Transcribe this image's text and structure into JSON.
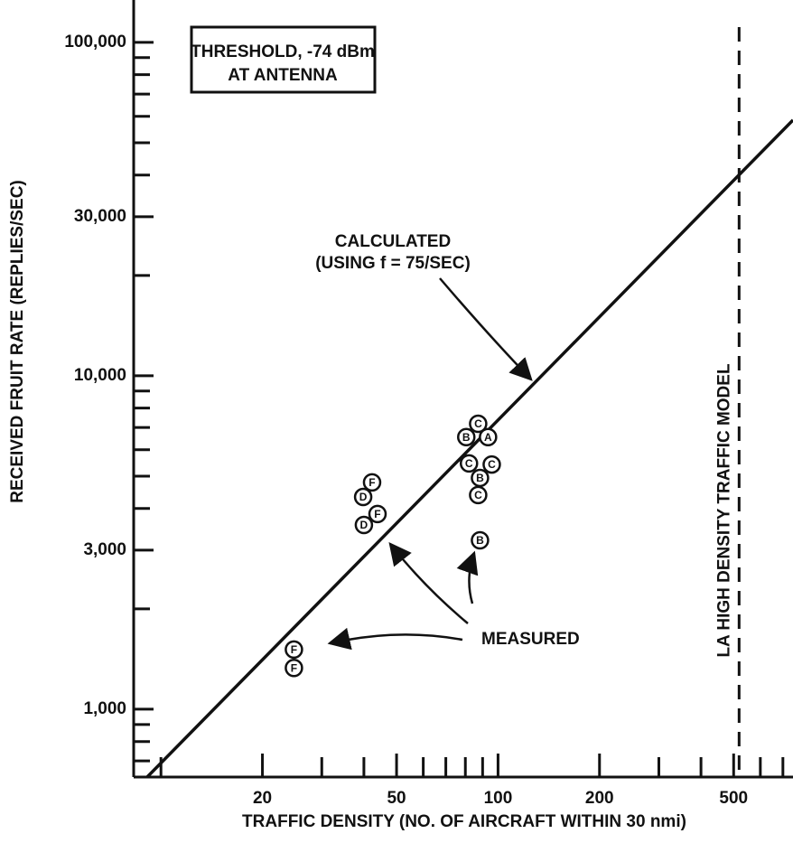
{
  "chart_data": {
    "type": "scatter",
    "x_label": "TRAFFIC DENSITY (NO. OF AIRCRAFT WITHIN 30 nmi)",
    "y_label": "RECEIVED FRUIT RATE (REPLIES/SEC)",
    "log_x": true,
    "log_y": true,
    "xlim": [
      8.3,
      750
    ],
    "ylim": [
      626,
      134000
    ],
    "xticks": [
      20,
      50,
      100,
      200,
      500
    ],
    "xminor_ticks": [
      10,
      30,
      40,
      60,
      70,
      80,
      90,
      300,
      400,
      600,
      700
    ],
    "yticks": [
      {
        "value": 1000,
        "label": "1,000"
      },
      {
        "value": 3000,
        "label": "3,000"
      },
      {
        "value": 10000,
        "label": "10,000"
      },
      {
        "value": 30000,
        "label": "30,000"
      },
      {
        "value": 100000,
        "label": "100,000"
      }
    ],
    "yminor_ticks": [
      700,
      800,
      900,
      2000,
      4000,
      5000,
      6000,
      7000,
      8000,
      9000,
      20000,
      40000,
      50000,
      60000,
      70000,
      80000,
      90000
    ],
    "series": [
      {
        "style": "line",
        "color": "#111111",
        "x": [
          9.1,
          750
        ],
        "values": [
          626,
          58500
        ]
      },
      {
        "style": "points",
        "color": "#111111",
        "x": [
          42.3,
          39.8,
          43.9,
          40.0,
          87.3,
          80.5,
          93.4,
          82.0,
          95.8,
          88.4,
          87.3,
          88.4,
          24.8,
          24.8
        ],
        "values": [
          4790,
          4330,
          3850,
          3570,
          7180,
          6550,
          6550,
          5460,
          5420,
          4940,
          4390,
          3210,
          1510,
          1330
        ],
        "labels": [
          "F",
          "D",
          "F",
          "D",
          "C",
          "B",
          "A",
          "C",
          "C",
          "B",
          "C",
          "B",
          "F",
          "F"
        ]
      }
    ],
    "vline": {
      "x": 519,
      "label": "LA HIGH DENSITY TRAFFIC MODEL"
    },
    "annotations": {
      "threshold": [
        "THRESHOLD, -74 dBm",
        "AT ANTENNA"
      ],
      "calculated": [
        "CALCULATED",
        "(USING f = 75/SEC)"
      ],
      "measured": "MEASURED"
    }
  }
}
